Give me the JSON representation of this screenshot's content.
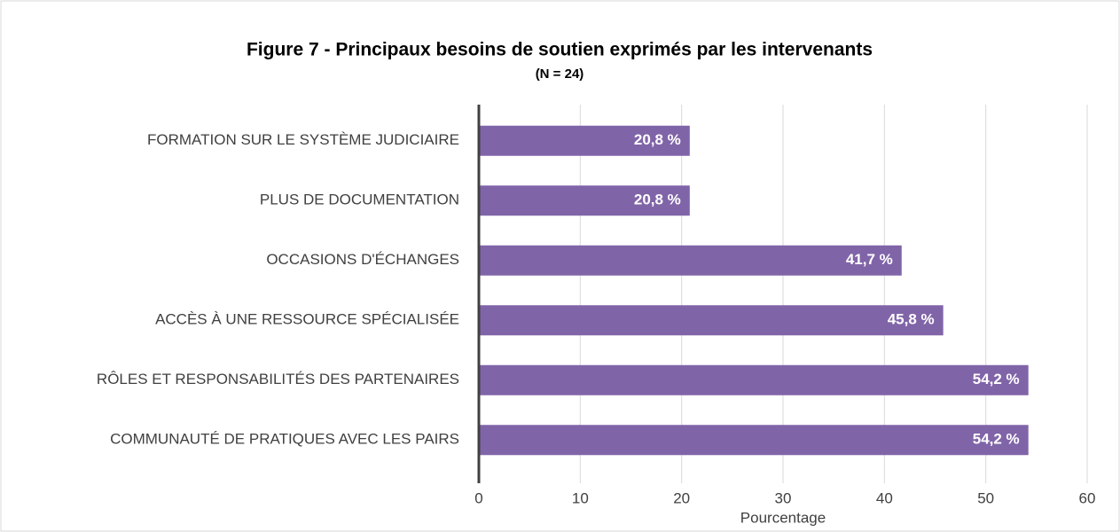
{
  "chart_data": {
    "type": "bar",
    "orientation": "horizontal",
    "title": "Figure 7 - Principaux besoins de soutien exprimés par les intervenants",
    "subtitle": "(N = 24)",
    "x_label": "Pourcentage",
    "categories": [
      "FORMATION SUR LE SYSTÈME JUDICIAIRE",
      "PLUS DE DOCUMENTATION",
      "OCCASIONS D'ÉCHANGES",
      "ACCÈS À UNE RESSOURCE SPÉCIALISÉE",
      "RÔLES ET RESPONSABILITÉS DES PARTENAIRES",
      "COMMUNAUTÉ DE PRATIQUES AVEC LES PAIRS"
    ],
    "values": [
      20.8,
      20.8,
      41.7,
      45.8,
      54.2,
      54.2
    ],
    "value_labels": [
      "20,8 %",
      "20,8 %",
      "41,7 %",
      "45,8 %",
      "54,2 %",
      "54,2 %"
    ],
    "color": "#8064a8",
    "xlim": [
      0,
      60
    ],
    "xticks": [
      0,
      10,
      20,
      30,
      40,
      50,
      60
    ],
    "grid": true
  }
}
